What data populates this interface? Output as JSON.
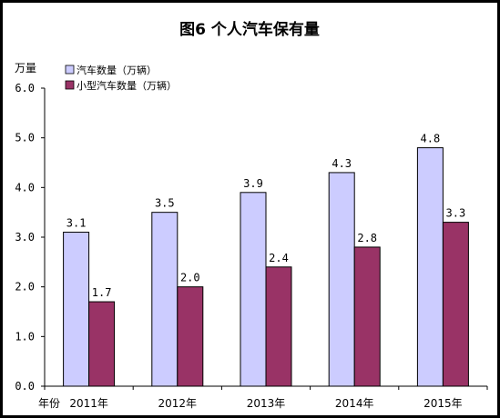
{
  "chart_data": {
    "type": "bar",
    "title": "图6  个人汽车保有量",
    "ylabel": "万量",
    "xlabel": "年份",
    "ylim": [
      0,
      6
    ],
    "yticks": [
      "0.0",
      "1.0",
      "2.0",
      "3.0",
      "4.0",
      "5.0",
      "6.0"
    ],
    "categories": [
      "2011年",
      "2012年",
      "2013年",
      "2014年",
      "2015年"
    ],
    "legend_position": "top-left",
    "series": [
      {
        "name": "汽车数量（万辆）",
        "color": "#ccccff",
        "values": [
          3.1,
          3.5,
          3.9,
          4.3,
          4.8
        ],
        "labels": [
          "3.1",
          "3.5",
          "3.9",
          "4.3",
          "4.8"
        ]
      },
      {
        "name": "小型汽车数量（万辆）",
        "color": "#993366",
        "values": [
          1.7,
          2.0,
          2.4,
          2.8,
          3.3
        ],
        "labels": [
          "1.7",
          "2.0",
          "2.4",
          "2.8",
          "3.3"
        ]
      }
    ]
  }
}
